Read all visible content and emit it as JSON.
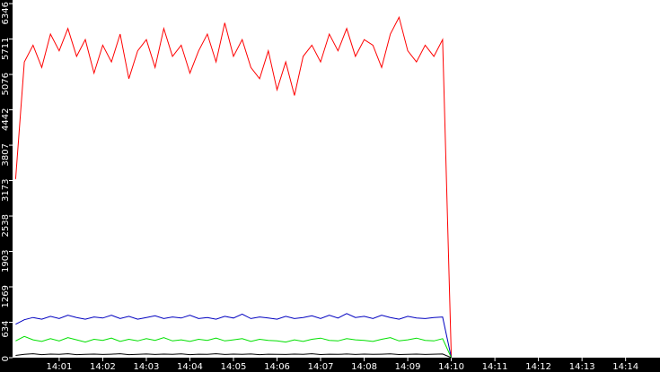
{
  "chart_data": {
    "type": "line",
    "x": [
      840,
      840.2,
      840.4,
      840.6,
      840.8,
      841,
      841.2,
      841.4,
      841.6,
      841.8,
      842,
      842.2,
      842.4,
      842.6,
      842.8,
      843,
      843.2,
      843.4,
      843.6,
      843.8,
      844,
      844.2,
      844.4,
      844.6,
      844.8,
      845,
      845.2,
      845.4,
      845.6,
      845.8,
      846,
      846.2,
      846.4,
      846.6,
      846.8,
      847,
      847.2,
      847.4,
      847.6,
      847.8,
      848,
      848.2,
      848.4,
      848.6,
      848.8,
      849,
      849.2,
      849.4,
      849.6,
      849.8,
      850
    ],
    "series": [
      {
        "color": "#ff0000",
        "values": [
          3200,
          5300,
          5600,
          5200,
          5800,
          5500,
          5900,
          5400,
          5700,
          5100,
          5600,
          5300,
          5800,
          5000,
          5500,
          5700,
          5200,
          5900,
          5400,
          5600,
          5100,
          5500,
          5800,
          5300,
          6000,
          5400,
          5700,
          5200,
          5000,
          5500,
          4800,
          5300,
          4700,
          5400,
          5600,
          5300,
          5800,
          5500,
          5900,
          5400,
          5700,
          5600,
          5200,
          5800,
          6100,
          5500,
          5300,
          5600,
          5400,
          5700,
          0
        ]
      },
      {
        "color": "#0000c0",
        "values": [
          600,
          680,
          720,
          690,
          740,
          700,
          760,
          720,
          690,
          730,
          710,
          760,
          700,
          740,
          690,
          720,
          750,
          700,
          730,
          710,
          760,
          700,
          720,
          690,
          740,
          710,
          780,
          700,
          730,
          710,
          690,
          740,
          700,
          720,
          750,
          700,
          760,
          710,
          790,
          720,
          740,
          700,
          760,
          720,
          690,
          740,
          710,
          700,
          720,
          730,
          0
        ]
      },
      {
        "color": "#00e000",
        "values": [
          300,
          380,
          320,
          290,
          340,
          300,
          360,
          320,
          280,
          330,
          310,
          350,
          290,
          330,
          300,
          340,
          310,
          360,
          300,
          320,
          290,
          330,
          310,
          350,
          300,
          320,
          340,
          290,
          330,
          310,
          300,
          280,
          320,
          290,
          330,
          350,
          310,
          300,
          340,
          320,
          310,
          290,
          330,
          360,
          300,
          320,
          350,
          310,
          300,
          340,
          0
        ]
      },
      {
        "color": "#000000",
        "values": [
          40,
          60,
          70,
          55,
          65,
          60,
          70,
          55,
          60,
          65,
          58,
          62,
          70,
          55,
          60,
          66,
          58,
          64,
          60,
          68,
          55,
          62,
          60,
          70,
          58,
          64,
          60,
          66,
          55,
          62,
          60,
          58,
          64,
          60,
          70,
          56,
          62,
          60,
          66,
          58,
          64,
          60,
          62,
          68,
          56,
          60,
          64,
          58,
          62,
          66,
          0
        ]
      }
    ],
    "xlim": [
      839.93,
      854.79
    ],
    "xticks": [
      {
        "value": 841,
        "label": "14:01"
      },
      {
        "value": 842,
        "label": "14:02"
      },
      {
        "value": 843,
        "label": "14:03"
      },
      {
        "value": 844,
        "label": "14:04"
      },
      {
        "value": 845,
        "label": "14:05"
      },
      {
        "value": 846,
        "label": "14:06"
      },
      {
        "value": 847,
        "label": "14:07"
      },
      {
        "value": 848,
        "label": "14:08"
      },
      {
        "value": 849,
        "label": "14:09"
      },
      {
        "value": 850,
        "label": "14:10"
      },
      {
        "value": 851,
        "label": "14:11"
      },
      {
        "value": 852,
        "label": "14:12"
      },
      {
        "value": 853,
        "label": "14:13"
      },
      {
        "value": 854,
        "label": "14:14"
      }
    ],
    "ylim": [
      0,
      6346
    ],
    "yticks": [
      0,
      634,
      1269,
      1903,
      2538,
      3173,
      3807,
      4442,
      5076,
      5711,
      6346
    ]
  }
}
